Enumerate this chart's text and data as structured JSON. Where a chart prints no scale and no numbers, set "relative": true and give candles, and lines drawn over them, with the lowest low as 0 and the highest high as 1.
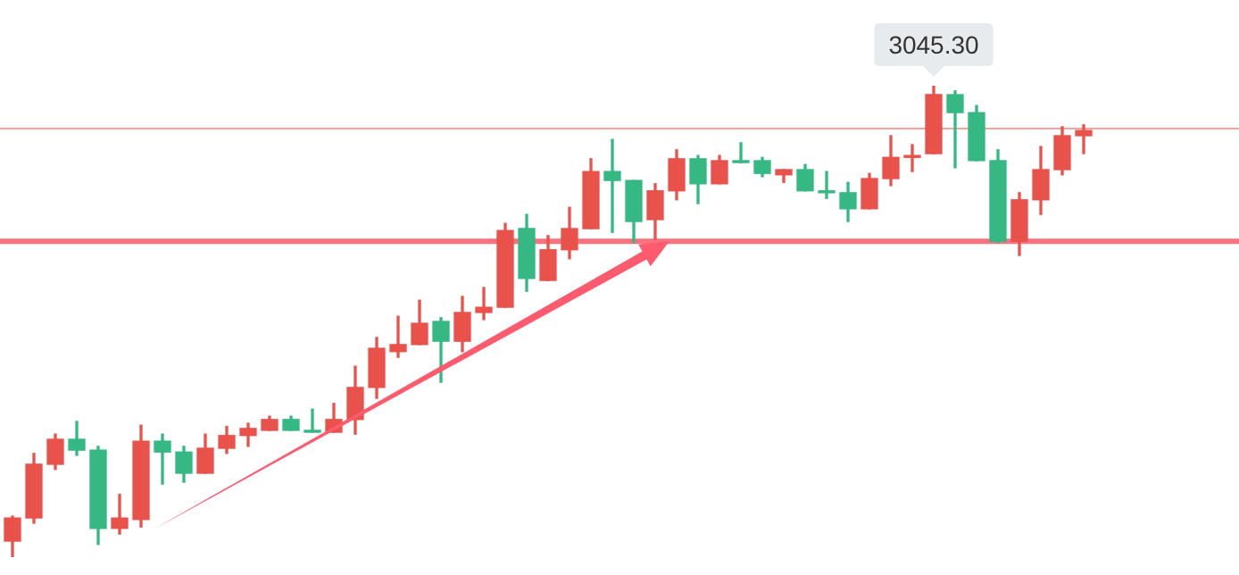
{
  "chart_data": {
    "type": "candlestick",
    "relative": true,
    "categories": [
      null,
      null,
      null,
      null,
      null,
      null,
      null,
      null,
      null,
      null,
      null,
      null,
      null,
      null,
      null,
      null,
      null,
      null,
      null,
      null,
      null,
      null,
      null,
      null,
      null,
      null,
      null,
      null,
      null,
      null,
      null,
      null,
      null,
      null,
      null,
      null,
      null,
      null,
      null,
      null,
      null,
      null,
      null,
      null,
      null,
      null,
      null,
      null,
      null,
      null,
      null
    ],
    "ohlc": [
      [
        0.034,
        0.087,
        0,
        0.083
      ],
      [
        0.083,
        0.22,
        0.072,
        0.197
      ],
      [
        0.197,
        0.261,
        0.186,
        0.25
      ],
      [
        0.25,
        0.288,
        0.216,
        0.227
      ],
      [
        0.227,
        0.235,
        0.027,
        0.061
      ],
      [
        0.061,
        0.133,
        0.049,
        0.083
      ],
      [
        0.08,
        0.28,
        0.064,
        0.246
      ],
      [
        0.246,
        0.261,
        0.155,
        0.223
      ],
      [
        0.223,
        0.235,
        0.159,
        0.178
      ],
      [
        0.178,
        0.261,
        0.178,
        0.231
      ],
      [
        0.231,
        0.277,
        0.22,
        0.258
      ],
      [
        0.258,
        0.284,
        0.235,
        0.273
      ],
      [
        0.269,
        0.299,
        0.269,
        0.292
      ],
      [
        0.292,
        0.299,
        0.269,
        0.269
      ],
      [
        0.269,
        0.314,
        0.265,
        0.265
      ],
      [
        0.265,
        0.326,
        0.265,
        0.292
      ],
      [
        0.292,
        0.405,
        0.261,
        0.36
      ],
      [
        0.36,
        0.466,
        0.337,
        0.443
      ],
      [
        0.436,
        0.511,
        0.424,
        0.451
      ],
      [
        0.451,
        0.545,
        0.451,
        0.496
      ],
      [
        0.5,
        0.508,
        0.371,
        0.458
      ],
      [
        0.458,
        0.553,
        0.436,
        0.519
      ],
      [
        0.519,
        0.572,
        0.504,
        0.53
      ],
      [
        0.53,
        0.708,
        0.53,
        0.693
      ],
      [
        0.697,
        0.727,
        0.564,
        0.591
      ],
      [
        0.587,
        0.682,
        0.587,
        0.652
      ],
      [
        0.652,
        0.742,
        0.633,
        0.697
      ],
      [
        0.697,
        0.845,
        0.697,
        0.818
      ],
      [
        0.818,
        0.886,
        0.689,
        0.799
      ],
      [
        0.799,
        0.799,
        0.667,
        0.712
      ],
      [
        0.716,
        0.792,
        0.674,
        0.777
      ],
      [
        0.777,
        0.864,
        0.758,
        0.845
      ],
      [
        0.845,
        0.852,
        0.75,
        0.792
      ],
      [
        0.792,
        0.852,
        0.792,
        0.841
      ],
      [
        0.841,
        0.879,
        0.837,
        0.837
      ],
      [
        0.841,
        0.848,
        0.807,
        0.814
      ],
      [
        0.811,
        0.822,
        0.795,
        0.822
      ],
      [
        0.822,
        0.833,
        0.777,
        0.777
      ],
      [
        0.777,
        0.818,
        0.761,
        0.773
      ],
      [
        0.773,
        0.795,
        0.712,
        0.739
      ],
      [
        0.739,
        0.814,
        0.739,
        0.803
      ],
      [
        0.803,
        0.894,
        0.788,
        0.848
      ],
      [
        0.848,
        0.875,
        0.818,
        0.852
      ],
      [
        0.856,
        1,
        0.856,
        0.981
      ],
      [
        0.981,
        0.989,
        0.826,
        0.943
      ],
      [
        0.943,
        0.958,
        0.841,
        0.841
      ],
      [
        0.841,
        0.864,
        0.667,
        0.67
      ],
      [
        0.67,
        0.773,
        0.64,
        0.758
      ],
      [
        0.758,
        0.871,
        0.727,
        0.822
      ],
      [
        0.822,
        0.913,
        0.811,
        0.894
      ],
      [
        0.894,
        0.917,
        0.856,
        0.905
      ]
    ],
    "colors": [
      "#e8524a",
      "#e8524a",
      "#e8524a",
      "#35b883",
      "#35b883",
      "#e8524a",
      "#e8524a",
      "#35b883",
      "#35b883",
      "#e8524a",
      "#e8524a",
      "#e8524a",
      "#e8524a",
      "#35b883",
      "#35b883",
      "#e8524a",
      "#e8524a",
      "#e8524a",
      "#e8524a",
      "#e8524a",
      "#35b883",
      "#e8524a",
      "#e8524a",
      "#e8524a",
      "#35b883",
      "#e8524a",
      "#e8524a",
      "#e8524a",
      "#35b883",
      "#35b883",
      "#e8524a",
      "#e8524a",
      "#35b883",
      "#e8524a",
      "#35b883",
      "#35b883",
      "#e8524a",
      "#35b883",
      "#35b883",
      "#35b883",
      "#e8524a",
      "#e8524a",
      "#e8524a",
      "#e8524a",
      "#35b883",
      "#35b883",
      "#35b883",
      "#e8524a",
      "#e8524a",
      "#e8524a",
      "#e8524a"
    ],
    "ref_lines": [
      {
        "axis": "y",
        "value": 0.909,
        "color": "#f4a3a3",
        "line_style": "solid"
      },
      {
        "axis": "y",
        "value": 0.67,
        "color": "#f9727f",
        "line_style": "solid"
      }
    ],
    "annotations": [
      {
        "text": "3045.30",
        "y": 1
      }
    ],
    "legend": false
  }
}
